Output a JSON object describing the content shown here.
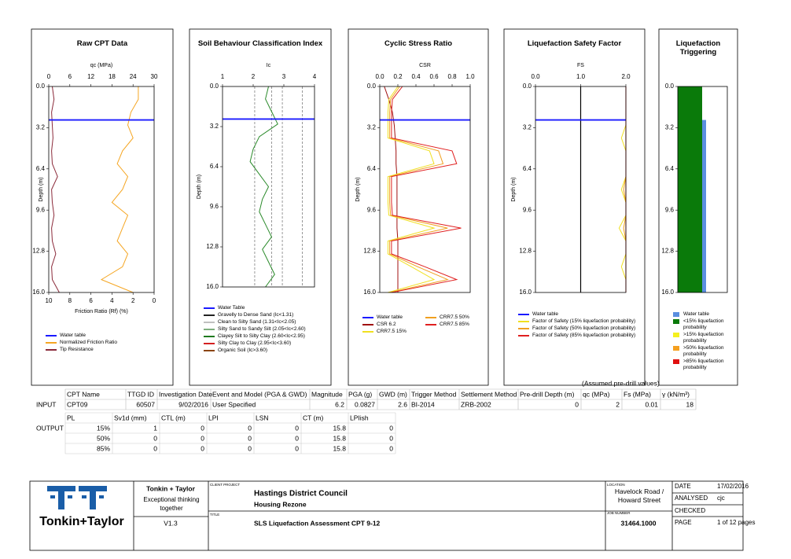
{
  "depth": [
    0,
    1,
    2,
    3,
    4,
    5,
    6,
    7,
    8,
    9,
    10,
    11,
    12,
    13,
    14,
    15,
    16
  ],
  "depth_lim": [
    0,
    16
  ],
  "depth_ticks": [
    {
      "value": 0,
      "label": "0.0"
    },
    3.2,
    6.4,
    9.6,
    12.8,
    {
      "value": 16,
      "label": "16.0"
    }
  ],
  "depth_label": "Depth (m)",
  "panels": [
    {
      "title": "Raw CPT Data",
      "x_label": "qc (MPa)",
      "xlim": [
        0,
        30
      ],
      "xticks": [
        0,
        6,
        12,
        18,
        24,
        30
      ],
      "x2_label": "Friction Ratio (Rf) (%)",
      "x2lim": [
        10,
        0
      ],
      "x2ticks": [
        10,
        8,
        6,
        4,
        2,
        0
      ],
      "water_table_label": "Water table",
      "series": [
        {
          "name": "Normalized Friction Ratio",
          "color": "#f5a623",
          "axis": "x2",
          "values": [
            1.5,
            1.5,
            2.2,
            2.5,
            2,
            3,
            3.5,
            2.5,
            3,
            4,
            2.5,
            3,
            3.5,
            2.5,
            3,
            5,
            2
          ]
        },
        {
          "name": "Tip Resistance",
          "color": "#8b2a3a",
          "values": [
            1,
            1.5,
            0.8,
            1,
            1.2,
            0.8,
            1,
            2.5,
            0.8,
            1,
            1.5,
            0.8,
            1,
            2,
            0.8,
            1,
            3
          ]
        }
      ]
    },
    {
      "title": "Soil Behaviour Classification Index",
      "x_label": "Ic",
      "xlim": [
        1,
        4
      ],
      "xticks": [
        1,
        2,
        3,
        4
      ],
      "boundaries": [
        2.05,
        2.6,
        2.95,
        3.6
      ],
      "water_table_label": "Water Table",
      "series": [
        {
          "color": "#2a8a2a",
          "values": [
            2.5,
            2.4,
            2.6,
            2.8,
            2.2,
            2.0,
            1.9,
            2.2,
            2.5,
            2.3,
            2.2,
            2.4,
            2.6,
            2.3,
            2.5,
            2.7,
            2.4
          ]
        }
      ],
      "classes": [
        {
          "name": "Gravelly to Dense Sand (Ic<1.31)",
          "color": "#222222"
        },
        {
          "name": "Clean to Silty Sand (1.31<Ic<2.05)",
          "color": "#c0c0c0"
        },
        {
          "name": "Silty Sand to Sandy Silt (2.05<Ic<2.60)",
          "color": "#7fae7f"
        },
        {
          "name": "Clayey Silt to Silty Clay (2.60<Ic<2.95)",
          "color": "#1f7a1f"
        },
        {
          "name": "Silty Clay to Clay (2.95<Ic<3.60)",
          "color": "#d42020"
        },
        {
          "name": "Organic Soil (Ic>3.60)",
          "color": "#8b4513"
        }
      ]
    },
    {
      "title": "Cyclic Stress Ratio",
      "x_label": "CSR",
      "xlim": [
        0,
        1
      ],
      "xticks": [
        {
          "value": 0,
          "label": "0.0"
        },
        0.2,
        0.4,
        0.6,
        0.8,
        {
          "value": 1,
          "label": "1.0"
        }
      ],
      "water_table_label": "Water table",
      "series": [
        {
          "name": "CSR 6.2",
          "color": "#a01010",
          "values": [
            0.05,
            0.1,
            0.14,
            0.16,
            0.17,
            0.18,
            0.18,
            0.19,
            0.19,
            0.19,
            0.19,
            0.19,
            0.2,
            0.2,
            0.2,
            0.2,
            0.2
          ]
        },
        {
          "name": "CRR7.5 15%",
          "color": "#f0e020",
          "values": [
            0.2,
            0.1,
            0.09,
            0.09,
            0.09,
            0.55,
            0.6,
            0.09,
            0.09,
            0.09,
            0.1,
            0.6,
            0.09,
            0.09,
            0.35,
            0.6,
            0.09
          ]
        },
        {
          "name": "CRR7.5 50%",
          "color": "#f0a020",
          "values": [
            0.22,
            0.12,
            0.11,
            0.11,
            0.11,
            0.65,
            0.7,
            0.11,
            0.11,
            0.11,
            0.12,
            0.75,
            0.11,
            0.11,
            0.42,
            0.75,
            0.11
          ]
        },
        {
          "name": "CRR7.5 85%",
          "color": "#e02020",
          "values": [
            0.25,
            0.14,
            0.13,
            0.13,
            0.13,
            0.8,
            0.85,
            0.13,
            0.13,
            0.13,
            0.14,
            0.9,
            0.13,
            0.13,
            0.5,
            0.85,
            0.13
          ]
        }
      ]
    },
    {
      "title": "Liquefaction Safety Factor",
      "x_label": "FS",
      "xlim": [
        0,
        2
      ],
      "xticks": [
        {
          "value": 0,
          "label": "0.0"
        },
        {
          "value": 1,
          "label": "1.0"
        },
        {
          "value": 2,
          "label": "2.0"
        }
      ],
      "threshold": 1,
      "water_table_label": "Water table",
      "series": [
        {
          "name": "Factor of Safety (15% liquefaction probability)",
          "color": "#f0e020",
          "values": [
            2,
            2,
            2,
            2,
            1.9,
            2,
            2,
            2,
            1.9,
            2,
            2,
            1.85,
            2,
            2,
            1.9,
            2,
            2
          ]
        },
        {
          "name": "Factor of Safety (50% liquefaction probability)",
          "color": "#f0a020",
          "values": [
            2,
            2,
            2,
            2,
            2,
            2,
            2,
            2,
            1.95,
            2,
            2,
            1.95,
            2,
            2,
            2,
            2,
            2
          ]
        },
        {
          "name": "Factor of Safety (85% liquefaction probability)",
          "color": "#e02020",
          "values": [
            2,
            2,
            2,
            2,
            2,
            2,
            2,
            2,
            2,
            2,
            2,
            2,
            2,
            2,
            2,
            2,
            2
          ]
        }
      ]
    },
    {
      "title": "Liquefaction Triggering",
      "water_table_label": "Water table",
      "classes": [
        {
          "name": "<15% liquefaction probability",
          "color": "#0a7a0a"
        },
        {
          "name": ">15% liquefaction probability",
          "color": "#f5f020"
        },
        {
          "name": ">50% liquefaction probability",
          "color": "#f5a020"
        },
        {
          "name": ">85% liquefaction probability",
          "color": "#e01010"
        }
      ]
    }
  ],
  "input": {
    "label": "INPUT",
    "note": "(Assumed pre-drill values)",
    "headers": [
      "CPT Name",
      "TTGD ID",
      "Investigation Date",
      "Event and Model (PGA & GWD)",
      "Magnitude",
      "PGA (g)",
      "GWD (m)",
      "Trigger Method",
      "Settlement Method",
      "Pre-drill Depth (m)",
      "qc (MPa)",
      "Fs (MPa)",
      "γ (kN/m³)"
    ],
    "row": [
      "CPT09",
      60507,
      "9/02/2016",
      "User Specified",
      6.2,
      0.0827,
      2.6,
      "BI-2014",
      "ZRB-2002",
      0,
      2,
      0.01,
      18
    ]
  },
  "output": {
    "label": "OUTPUT",
    "headers": [
      "PL",
      "Sv1d (mm)",
      "CTL (m)",
      "LPI",
      "LSN",
      "CT (m)",
      "LPIish"
    ],
    "rows": [
      [
        "15%",
        1,
        0,
        0,
        0,
        15.8,
        0
      ],
      [
        "50%",
        0,
        0,
        0,
        0,
        15.8,
        0
      ],
      [
        "85%",
        0,
        0,
        0,
        0,
        15.8,
        0
      ]
    ]
  },
  "title_block": {
    "logo": "Tonkin+Taylor",
    "company": "Tonkin + Taylor",
    "tagline": "Exceptional thinking together",
    "version": "V1.3",
    "client_label": "CLIENT PROJECT",
    "client": "Hastings District Council",
    "project": "Housing Rezone",
    "title_label": "TITLE",
    "title": "SLS Liquefaction Assessment CPT 9-12",
    "location_label": "LOCATION",
    "location": "Havelock Road / Howard Street",
    "job_label": "JOB NUMBER",
    "job": "31464.1000",
    "date_label": "DATE",
    "date": "17/02/2016",
    "analysed_label": "ANALYSED",
    "analysed": "cjc",
    "checked_label": "CHECKED",
    "page_label": "PAGE",
    "page": "1 of 12 pages"
  }
}
